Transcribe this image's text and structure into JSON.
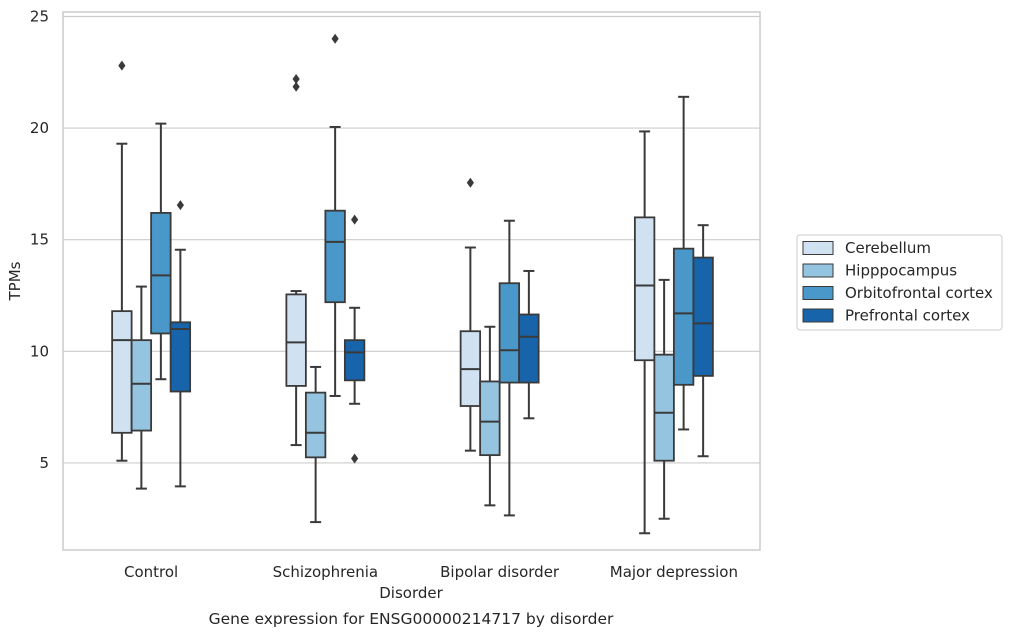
{
  "chart_data": {
    "type": "box",
    "xlabel": "Disorder",
    "ylabel": "TPMs",
    "caption": "Gene expression for ENSG00000214717 by disorder",
    "ylim": [
      1.1,
      25.2
    ],
    "yticks": [
      5,
      10,
      15,
      20,
      25
    ],
    "grid": "horizontal",
    "legend_position": "right-center",
    "categories": [
      "Control",
      "Schizophrenia",
      "Bipolar disorder",
      "Major depression"
    ],
    "series": [
      {
        "name": "Cerebellum",
        "color": "#d0e1f2",
        "boxes": [
          {
            "min": 5.1,
            "q1": 6.35,
            "median": 10.5,
            "q3": 11.8,
            "max": 19.3,
            "outliers": [
              22.8
            ]
          },
          {
            "min": 5.8,
            "q1": 8.45,
            "median": 10.4,
            "q3": 12.55,
            "max": 12.7,
            "outliers": [
              21.85,
              22.2
            ]
          },
          {
            "min": 5.55,
            "q1": 7.55,
            "median": 9.2,
            "q3": 10.9,
            "max": 14.65,
            "outliers": [
              17.55
            ]
          },
          {
            "min": 1.85,
            "q1": 9.6,
            "median": 12.95,
            "q3": 16.0,
            "max": 19.85,
            "outliers": []
          }
        ]
      },
      {
        "name": "Hipppocampus",
        "color": "#94c4df",
        "boxes": [
          {
            "min": 3.85,
            "q1": 6.45,
            "median": 8.55,
            "q3": 10.5,
            "max": 12.9,
            "outliers": []
          },
          {
            "min": 2.35,
            "q1": 5.25,
            "median": 6.35,
            "q3": 8.15,
            "max": 9.3,
            "outliers": []
          },
          {
            "min": 3.1,
            "q1": 5.35,
            "median": 6.85,
            "q3": 8.65,
            "max": 11.1,
            "outliers": []
          },
          {
            "min": 2.5,
            "q1": 5.1,
            "median": 7.25,
            "q3": 9.85,
            "max": 13.2,
            "outliers": []
          }
        ]
      },
      {
        "name": "Orbitofrontal cortex",
        "color": "#4a98c9",
        "boxes": [
          {
            "min": 8.75,
            "q1": 10.8,
            "median": 13.4,
            "q3": 16.2,
            "max": 20.2,
            "outliers": []
          },
          {
            "min": 8.0,
            "q1": 12.2,
            "median": 14.9,
            "q3": 16.3,
            "max": 20.05,
            "outliers": [
              24.0
            ]
          },
          {
            "min": 2.65,
            "q1": 8.6,
            "median": 10.05,
            "q3": 13.05,
            "max": 15.85,
            "outliers": []
          },
          {
            "min": 6.5,
            "q1": 8.5,
            "median": 11.7,
            "q3": 14.6,
            "max": 21.4,
            "outliers": []
          }
        ]
      },
      {
        "name": "Prefrontal cortex",
        "color": "#1764ab",
        "boxes": [
          {
            "min": 3.95,
            "q1": 8.2,
            "median": 11.0,
            "q3": 11.3,
            "max": 14.55,
            "outliers": [
              16.55
            ]
          },
          {
            "min": 7.65,
            "q1": 8.7,
            "median": 9.95,
            "q3": 10.5,
            "max": 11.95,
            "outliers": [
              5.2,
              15.9
            ]
          },
          {
            "min": 7.0,
            "q1": 8.6,
            "median": 10.65,
            "q3": 11.65,
            "max": 13.6,
            "outliers": []
          },
          {
            "min": 5.3,
            "q1": 8.9,
            "median": 11.25,
            "q3": 14.2,
            "max": 15.65,
            "outliers": []
          }
        ]
      }
    ]
  }
}
